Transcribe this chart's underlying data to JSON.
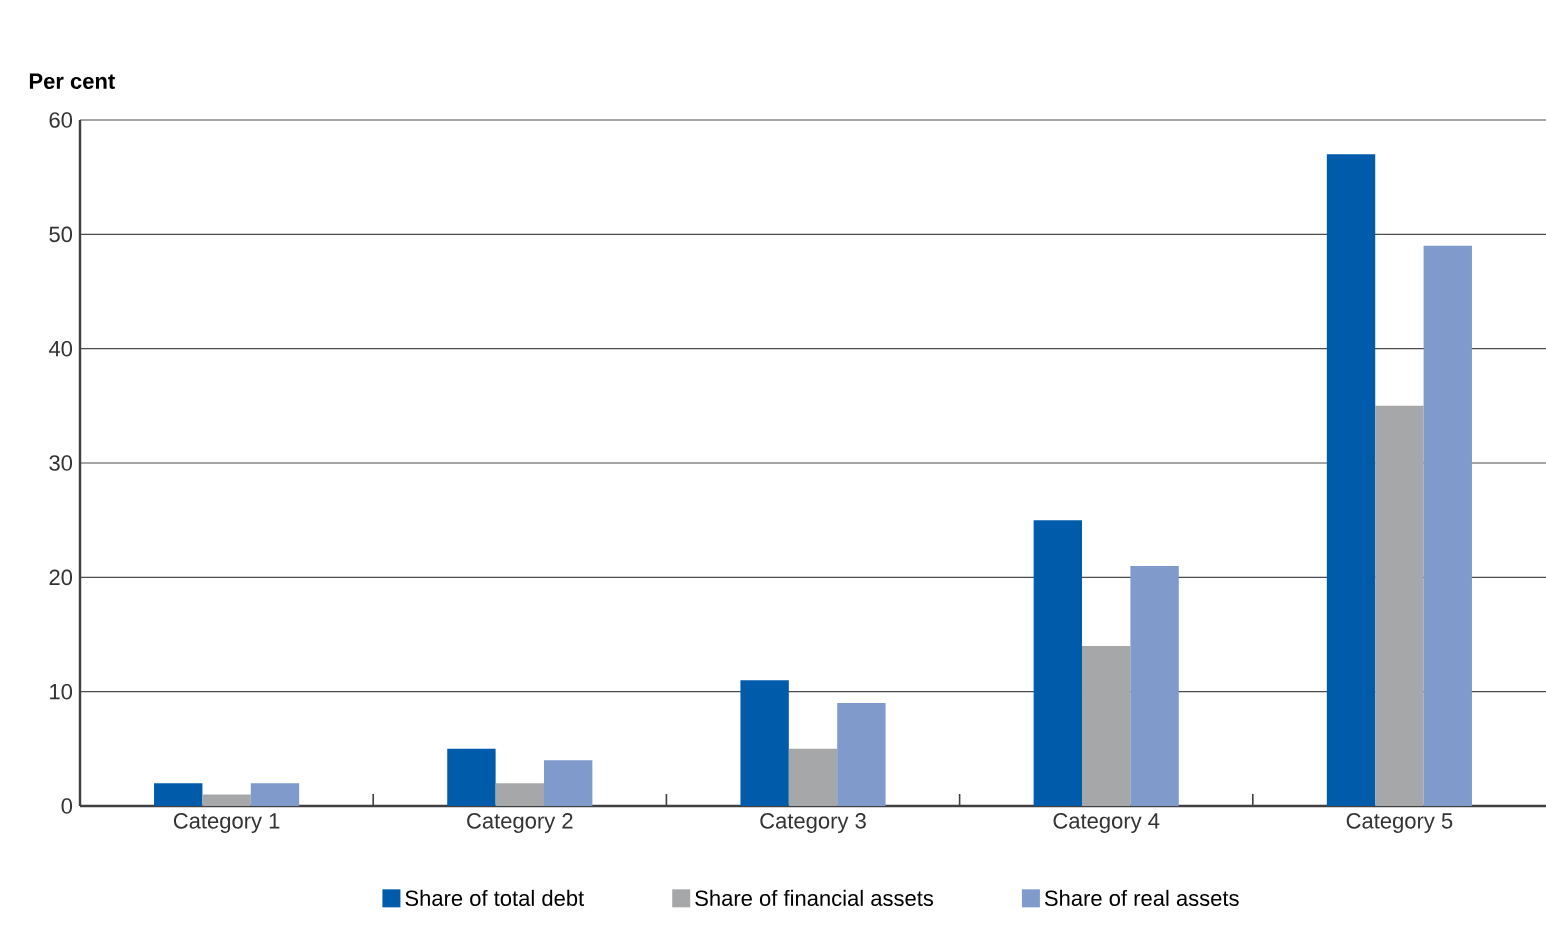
{
  "chart_data": {
    "type": "bar",
    "ylabel": "Per cent",
    "categories": [
      "Category 1",
      "Category 2",
      "Category 3",
      "Category 4",
      "Category 5"
    ],
    "series": [
      {
        "name": "Share of total debt",
        "color": "#005baa",
        "values": [
          2,
          5,
          11,
          25,
          57
        ]
      },
      {
        "name": "Share of financial assets",
        "color": "#a6a7a9",
        "values": [
          1,
          2,
          5,
          14,
          35
        ]
      },
      {
        "name": "Share of real assets",
        "color": "#7f9acb",
        "values": [
          2,
          4,
          9,
          21,
          49
        ]
      }
    ],
    "ylim": [
      0,
      60
    ],
    "yticks": [
      0,
      10,
      20,
      30,
      40,
      50,
      60
    ],
    "grid": "y",
    "legend": "bottom"
  }
}
